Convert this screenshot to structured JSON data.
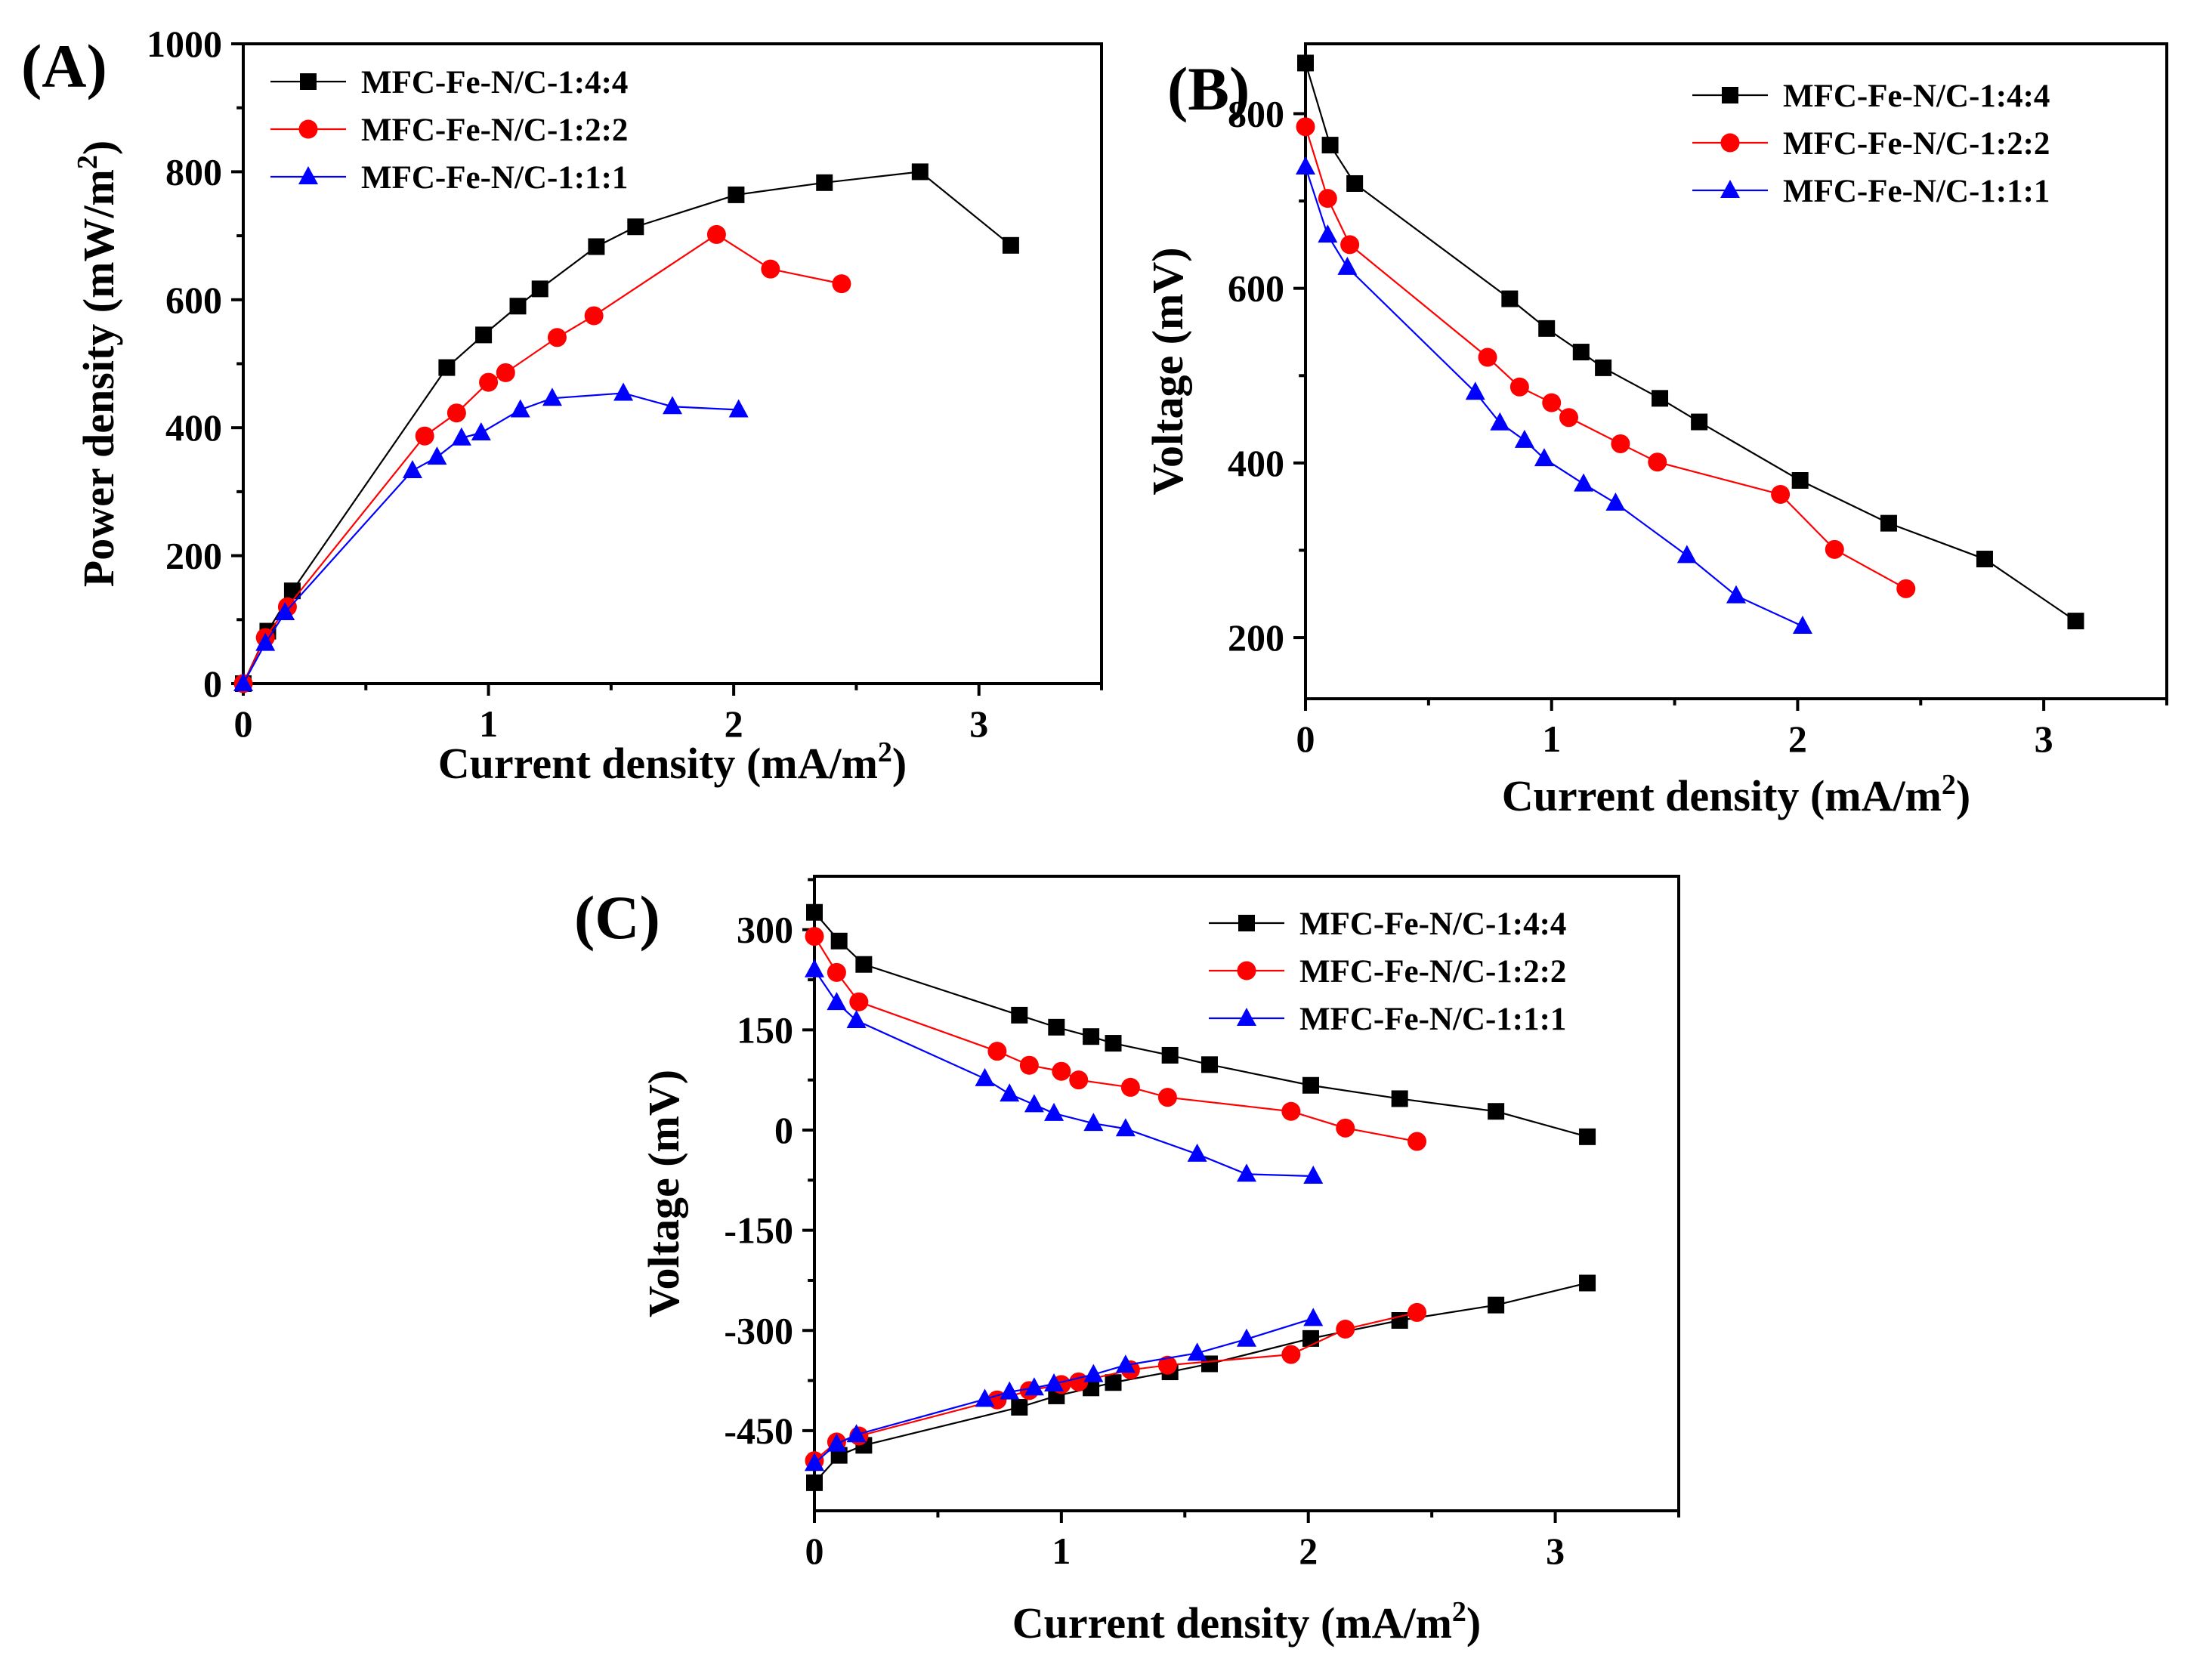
{
  "chart_data": [
    {
      "type": "line",
      "panel_label": "(A)",
      "xlabel": "Current density",
      "xunit": "(mA/m",
      "xunit_sup": "2",
      "xunit_close": ")",
      "ylabel": "Power density",
      "yunit": "(mW/m",
      "yunit_sup": "2",
      "yunit_close": ")",
      "xlim": [
        0,
        3.5
      ],
      "ylim": [
        0,
        1000
      ],
      "xticks": [
        0,
        1,
        2,
        3
      ],
      "yticks": [
        0,
        200,
        400,
        600,
        800,
        1000
      ],
      "legend_position": "top-left",
      "series": [
        {
          "name": "MFC-Fe-N/C-1:4:4",
          "color": "#000000",
          "marker": "square",
          "x": [
            0,
            0.1,
            0.2,
            0.83,
            0.98,
            1.12,
            1.21,
            1.44,
            1.6,
            2.01,
            2.37,
            2.76,
            3.13
          ],
          "y": [
            0,
            82,
            145,
            494,
            545,
            590,
            617,
            683,
            714,
            764,
            783,
            800,
            685
          ]
        },
        {
          "name": "MFC-Fe-N/C-1:2:2",
          "color": "#ff0000",
          "marker": "circle",
          "x": [
            0,
            0.09,
            0.18,
            0.74,
            0.87,
            1.0,
            1.07,
            1.28,
            1.43,
            1.93,
            2.15,
            2.44
          ],
          "y": [
            0,
            72,
            120,
            387,
            423,
            471,
            486,
            541,
            575,
            702,
            648,
            625
          ]
        },
        {
          "name": "MFC-Fe-N/C-1:1:1",
          "color": "#0000ff",
          "marker": "triangle",
          "x": [
            0,
            0.09,
            0.17,
            0.69,
            0.79,
            0.89,
            0.97,
            1.13,
            1.26,
            1.55,
            1.75,
            2.02
          ],
          "y": [
            0,
            63,
            111,
            333,
            354,
            384,
            392,
            428,
            446,
            454,
            433,
            428
          ]
        }
      ]
    },
    {
      "type": "line",
      "panel_label": "(B)",
      "xlabel": "Current density",
      "xunit": "(mA/m",
      "xunit_sup": "2",
      "xunit_close": ")",
      "ylabel": "Voltage (mV)",
      "xlim": [
        0,
        3.5
      ],
      "ylim": [
        130,
        880
      ],
      "xticks": [
        0,
        1,
        2,
        3
      ],
      "yticks": [
        200,
        400,
        600,
        800
      ],
      "legend_position": "top-right",
      "series": [
        {
          "name": "MFC-Fe-N/C-1:4:4",
          "color": "#000000",
          "marker": "square",
          "x": [
            0,
            0.1,
            0.2,
            0.83,
            0.98,
            1.12,
            1.21,
            1.44,
            1.6,
            2.01,
            2.37,
            2.76,
            3.13
          ],
          "y": [
            858,
            764,
            720,
            588,
            554,
            527,
            509,
            474,
            447,
            380,
            331,
            290,
            219
          ]
        },
        {
          "name": "MFC-Fe-N/C-1:2:2",
          "color": "#ff0000",
          "marker": "circle",
          "x": [
            0,
            0.09,
            0.18,
            0.74,
            0.87,
            1.0,
            1.07,
            1.28,
            1.43,
            1.93,
            2.15,
            2.44
          ],
          "y": [
            785,
            703,
            650,
            521,
            487,
            469,
            452,
            422,
            401,
            364,
            301,
            256
          ]
        },
        {
          "name": "MFC-Fe-N/C-1:1:1",
          "color": "#0000ff",
          "marker": "triangle",
          "x": [
            0,
            0.09,
            0.17,
            0.69,
            0.79,
            0.89,
            0.97,
            1.13,
            1.26,
            1.55,
            1.75,
            2.02
          ],
          "y": [
            739,
            661,
            624,
            481,
            446,
            426,
            405,
            376,
            354,
            294,
            248,
            213
          ]
        }
      ]
    },
    {
      "type": "line",
      "panel_label": "(C)",
      "xlabel": "Current density",
      "xunit": "(mA/m",
      "xunit_sup": "2",
      "xunit_close": ")",
      "ylabel": "Voltage (mV)",
      "xlim": [
        0,
        3.5
      ],
      "ylim": [
        -570,
        380
      ],
      "xticks": [
        0,
        1,
        2,
        3
      ],
      "yticks": [
        300,
        150,
        0,
        -150,
        -300,
        -450
      ],
      "legend_position": "top-right",
      "series": [
        {
          "name": "MFC-Fe-N/C-1:4:4",
          "color": "#000000",
          "marker": "square",
          "role": "cathode",
          "x": [
            0,
            0.1,
            0.2,
            0.83,
            0.98,
            1.12,
            1.21,
            1.44,
            1.6,
            2.01,
            2.37,
            2.76,
            3.13
          ],
          "y": [
            326,
            283,
            248,
            172,
            154,
            140,
            130,
            112,
            98,
            67,
            47,
            28,
            -10
          ]
        },
        {
          "name": "MFC-Fe-N/C-1:2:2",
          "color": "#ff0000",
          "marker": "circle",
          "role": "cathode",
          "x": [
            0,
            0.09,
            0.18,
            0.74,
            0.87,
            1.0,
            1.07,
            1.28,
            1.43,
            1.93,
            2.15,
            2.44
          ],
          "y": [
            290,
            236,
            192,
            118,
            97,
            88,
            75,
            64,
            49,
            28,
            3,
            -17
          ]
        },
        {
          "name": "MFC-Fe-N/C-1:1:1",
          "color": "#0000ff",
          "marker": "triangle",
          "role": "cathode",
          "x": [
            0,
            0.09,
            0.17,
            0.69,
            0.79,
            0.89,
            0.97,
            1.13,
            1.26,
            1.55,
            1.75,
            2.02
          ],
          "y": [
            240,
            191,
            164,
            77,
            54,
            38,
            25,
            10,
            2,
            -36,
            -66,
            -69
          ]
        },
        {
          "name": "MFC-Fe-N/C-1:4:4",
          "color": "#000000",
          "marker": "square",
          "role": "anode",
          "x": [
            0,
            0.1,
            0.2,
            0.83,
            0.98,
            1.12,
            1.21,
            1.44,
            1.6,
            2.01,
            2.37,
            2.76,
            3.13
          ],
          "y": [
            -528,
            -487,
            -472,
            -415,
            -398,
            -386,
            -378,
            -362,
            -350,
            -312,
            -285,
            -262,
            -229
          ]
        },
        {
          "name": "MFC-Fe-N/C-1:2:2",
          "color": "#ff0000",
          "marker": "circle",
          "role": "anode",
          "x": [
            0,
            0.09,
            0.18,
            0.74,
            0.87,
            1.0,
            1.07,
            1.28,
            1.43,
            1.93,
            2.15,
            2.44
          ],
          "y": [
            -495,
            -467,
            -458,
            -404,
            -390,
            -381,
            -377,
            -359,
            -352,
            -336,
            -298,
            -273
          ]
        },
        {
          "name": "MFC-Fe-N/C-1:1:1",
          "color": "#0000ff",
          "marker": "triangle",
          "role": "anode",
          "x": [
            0,
            0.09,
            0.17,
            0.69,
            0.79,
            0.89,
            0.97,
            1.13,
            1.26,
            1.55,
            1.75,
            2.02
          ],
          "y": [
            -499,
            -470,
            -456,
            -403,
            -392,
            -386,
            -380,
            -366,
            -352,
            -334,
            -313,
            -282
          ]
        }
      ]
    }
  ]
}
